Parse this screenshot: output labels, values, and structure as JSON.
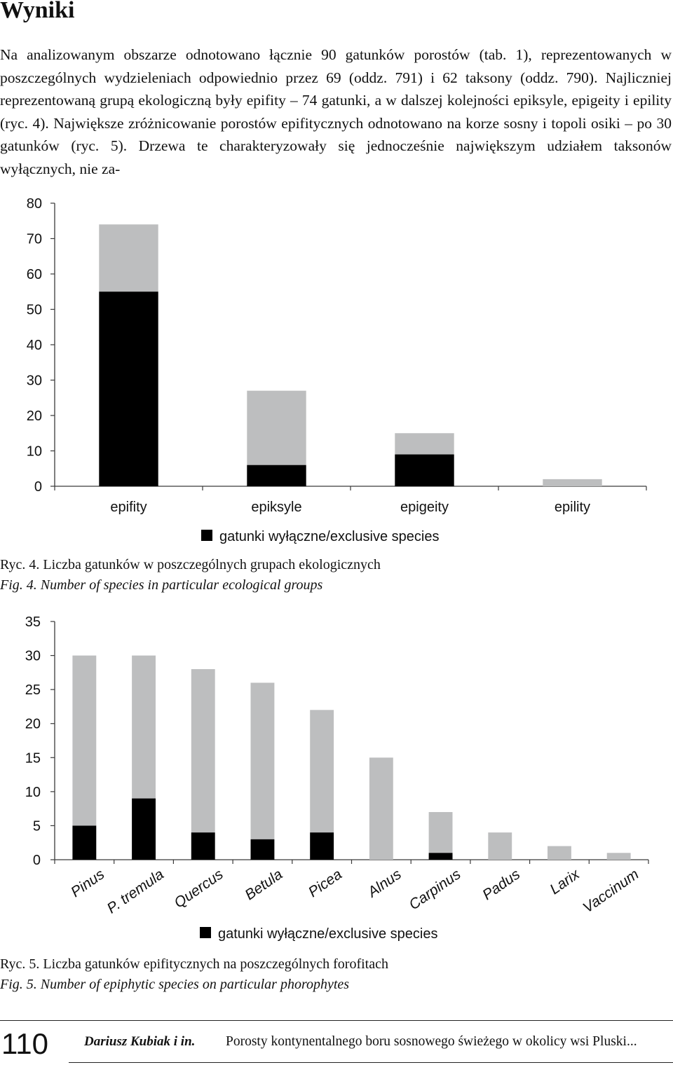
{
  "section": {
    "heading": "Wyniki"
  },
  "body_text": "Na analizowanym obszarze odnotowano łącznie 90 gatunków porostów (tab. 1), reprezentowanych w poszczególnych wydzieleniach odpowiednio przez 69 (oddz. 791) i 62 taksony (oddz. 790). Najliczniej reprezentowaną grupą ekologiczną były epifity – 74 gatunki, a w dalszej kolejności epiksyle, epigeity i epility (ryc. 4). Największe zróżnicowanie porostów epifitycznych odnotowano na korze sosny i topoli osiki – po 30 gatunków (ryc. 5). Drzewa te charakteryzowały się jednocześnie największym udziałem taksonów wyłącznych, nie za-",
  "figure4": {
    "caption_pl": "Ryc. 4. Liczba gatunków w poszczególnych grupach ekologicznych",
    "caption_en": "Fig. 4. Number of species in particular ecological groups"
  },
  "figure5": {
    "caption_pl": "Ryc. 5. Liczba gatunków epifitycznych na poszczególnych forofitach",
    "caption_en": "Fig. 5. Number of epiphytic species on particular phorophytes"
  },
  "footer": {
    "page_number": "110",
    "authors": "Dariusz Kubiak i in.",
    "title": "Porosty kontynentalnego boru sosnowego świeżego w okolicy wsi Pluski..."
  },
  "colors": {
    "exclusive": "#000000",
    "total": "#bdbebf",
    "axis": "#3a3a3a"
  },
  "chart_data": [
    {
      "type": "bar",
      "stacked": true,
      "categories": [
        "epifity",
        "epiksyle",
        "epigeity",
        "epility"
      ],
      "series": [
        {
          "name": "gatunki wyłączne/exclusive species",
          "values": [
            55,
            6,
            9,
            0
          ]
        },
        {
          "name": "",
          "values": [
            19,
            21,
            6,
            2
          ]
        }
      ],
      "totals": [
        74,
        27,
        15,
        2
      ],
      "ylim": [
        0,
        80
      ],
      "yticks": [
        0,
        10,
        20,
        30,
        40,
        50,
        60,
        70,
        80
      ],
      "grid": false,
      "legend": "bottom-center",
      "title": "",
      "xlabel": "",
      "ylabel": ""
    },
    {
      "type": "bar",
      "stacked": true,
      "categories": [
        "Pinus",
        "P. tremula",
        "Quercus",
        "Betula",
        "Picea",
        "Alnus",
        "Carpinus",
        "Padus",
        "Larix",
        "Vaccinum"
      ],
      "series": [
        {
          "name": "gatunki wyłączne/exclusive species",
          "values": [
            5,
            9,
            4,
            3,
            4,
            0,
            1,
            0,
            0,
            0
          ]
        },
        {
          "name": "",
          "values": [
            25,
            21,
            24,
            23,
            18,
            15,
            6,
            4,
            2,
            1
          ]
        }
      ],
      "totals": [
        30,
        30,
        28,
        26,
        22,
        15,
        7,
        4,
        2,
        1
      ],
      "ylim": [
        0,
        35
      ],
      "yticks": [
        0,
        5,
        10,
        15,
        20,
        25,
        30,
        35
      ],
      "grid": false,
      "legend": "bottom-center",
      "title": "",
      "xlabel": "",
      "ylabel": ""
    }
  ]
}
